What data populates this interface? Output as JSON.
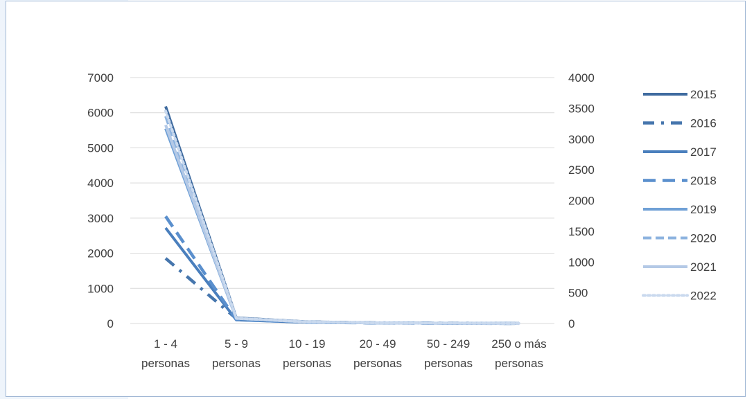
{
  "chart_data": {
    "type": "line",
    "categories": [
      [
        "1 - 4",
        "personas"
      ],
      [
        "5 - 9",
        "personas"
      ],
      [
        "10 - 19",
        "personas"
      ],
      [
        "20 - 49",
        "personas"
      ],
      [
        "50 - 249",
        "personas"
      ],
      [
        "250 o más",
        "personas"
      ]
    ],
    "y_left": {
      "min": 0,
      "max": 7000,
      "ticks": [
        "0",
        "1000",
        "2000",
        "3000",
        "4000",
        "5000",
        "6000",
        "7000"
      ]
    },
    "y_right": {
      "min": 0,
      "max": 4000,
      "ticks": [
        "0",
        "500",
        "1000",
        "1500",
        "2000",
        "2500",
        "3000",
        "3500",
        "4000"
      ]
    },
    "grid": true,
    "legend_position": "right",
    "series": [
      {
        "name": "2015",
        "axis": "left",
        "color": "#3f6b9f",
        "dash": "solid",
        "values": [
          6180,
          160,
          50,
          20,
          8,
          2
        ]
      },
      {
        "name": "2016",
        "axis": "right",
        "color": "#4676ad",
        "dash": "dashdot",
        "values": [
          1060,
          80,
          25,
          10,
          5,
          1
        ]
      },
      {
        "name": "2017",
        "axis": "left",
        "color": "#4a7fbd",
        "dash": "solid",
        "values": [
          2720,
          100,
          35,
          15,
          6,
          2
        ]
      },
      {
        "name": "2018",
        "axis": "left",
        "color": "#5a8fcd",
        "dash": "longdash",
        "values": [
          3050,
          110,
          35,
          15,
          6,
          2
        ]
      },
      {
        "name": "2019",
        "axis": "left",
        "color": "#6fa0d6",
        "dash": "solid",
        "values": [
          5550,
          140,
          45,
          18,
          7,
          2
        ]
      },
      {
        "name": "2020",
        "axis": "left",
        "color": "#8db3df",
        "dash": "dash",
        "values": [
          5900,
          150,
          45,
          18,
          7,
          2
        ]
      },
      {
        "name": "2021",
        "axis": "left",
        "color": "#b4c9e6",
        "dash": "solid",
        "values": [
          5650,
          145,
          45,
          18,
          7,
          2
        ]
      },
      {
        "name": "2022",
        "axis": "left",
        "color": "#c9d9ee",
        "dash": "dot",
        "values": [
          6050,
          150,
          45,
          18,
          7,
          2
        ]
      }
    ]
  }
}
